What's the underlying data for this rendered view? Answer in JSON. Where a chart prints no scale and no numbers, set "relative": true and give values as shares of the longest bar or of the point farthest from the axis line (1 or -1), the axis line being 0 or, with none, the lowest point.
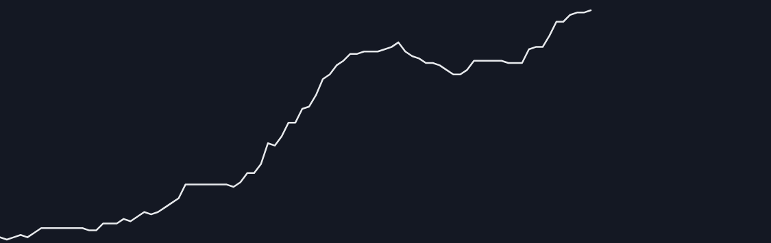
{
  "chart_data": {
    "type": "line",
    "relative": true,
    "categories": [
      null,
      null,
      null,
      null,
      null,
      null,
      null,
      null,
      null,
      null,
      null,
      null,
      null,
      null,
      null,
      null,
      null,
      null,
      null,
      null,
      null,
      null,
      null,
      null,
      null,
      null,
      null,
      null,
      null,
      null,
      null,
      null,
      null,
      null,
      null,
      null,
      null,
      null,
      null,
      null,
      null,
      null,
      null,
      null,
      null,
      null,
      null,
      null,
      null,
      null,
      null,
      null,
      null,
      null,
      null,
      null,
      null,
      null,
      null,
      null,
      null,
      null,
      null,
      null,
      null,
      null,
      null,
      null,
      null,
      null,
      null,
      null,
      null,
      null,
      null,
      null,
      null,
      null,
      null,
      null,
      null,
      null,
      null,
      null,
      null,
      null,
      null
    ],
    "series": [
      {
        "color": "#e8eaed",
        "values": [
          0.01,
          0,
          0.01,
          0.02,
          0.01,
          0.03,
          0.05,
          0.05,
          0.05,
          0.05,
          0.05,
          0.05,
          0.05,
          0.04,
          0.04,
          0.07,
          0.07,
          0.07,
          0.09,
          0.08,
          0.1,
          0.12,
          0.11,
          0.12,
          0.14,
          0.16,
          0.18,
          0.24,
          0.24,
          0.24,
          0.24,
          0.24,
          0.24,
          0.24,
          0.23,
          0.25,
          0.29,
          0.29,
          0.33,
          0.42,
          0.41,
          0.45,
          0.51,
          0.51,
          0.57,
          0.58,
          0.63,
          0.7,
          0.72,
          0.76,
          0.78,
          0.81,
          0.81,
          0.82,
          0.82,
          0.82,
          0.83,
          0.84,
          0.86,
          0.82,
          0.8,
          0.79,
          0.77,
          0.77,
          0.76,
          0.74,
          0.72,
          0.72,
          0.74,
          0.78,
          0.78,
          0.78,
          0.78,
          0.78,
          0.77,
          0.77,
          0.77,
          0.83,
          0.84,
          0.84,
          0.89,
          0.95,
          0.95,
          0.98,
          0.99,
          0.99,
          1.0
        ]
      }
    ],
    "marker": "none"
  }
}
